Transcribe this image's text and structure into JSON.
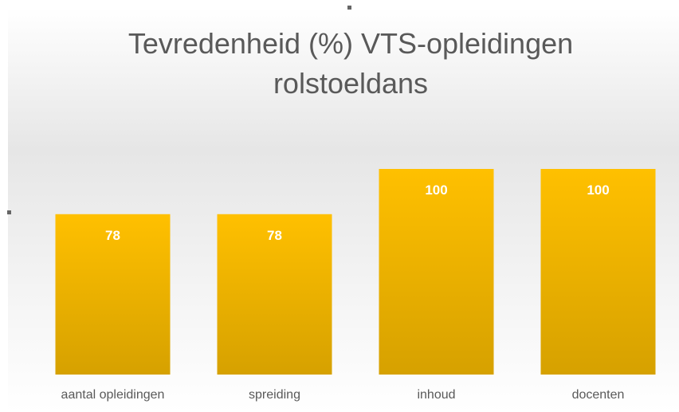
{
  "chart_data": {
    "type": "bar",
    "title": "Tevredenheid (%) VTS-opleidingen rolstoeldans",
    "categories": [
      "aantal opleidingen",
      "spreiding",
      "inhoud",
      "docenten"
    ],
    "values": [
      78,
      78,
      100,
      100
    ],
    "color": "#ffc000"
  }
}
